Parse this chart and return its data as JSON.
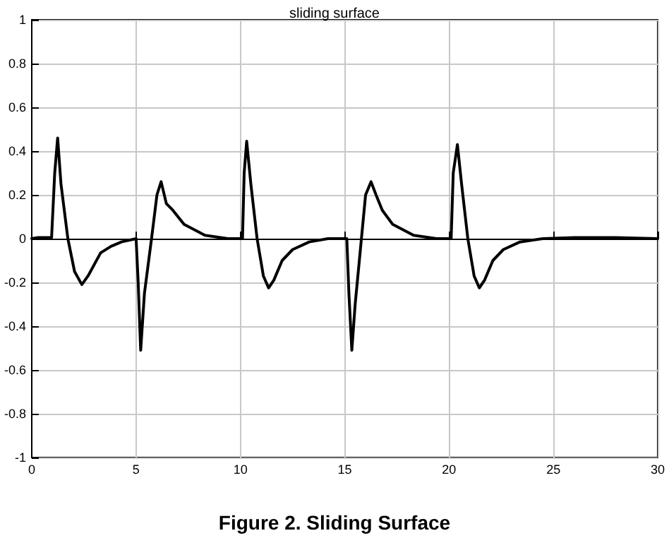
{
  "chart_data": {
    "type": "line",
    "title": "sliding surface",
    "annotations": [
      "Figure 2. Sliding Surface"
    ],
    "x": [
      0,
      0.3,
      0.95,
      1.1,
      1.24,
      1.4,
      1.73,
      2.05,
      2.4,
      2.7,
      3.3,
      3.8,
      4.3,
      5.0,
      5.1,
      5.22,
      5.4,
      5.74,
      6.0,
      6.2,
      6.45,
      6.76,
      7.3,
      8.3,
      9.4,
      10.1,
      10.18,
      10.3,
      10.5,
      10.8,
      11.1,
      11.35,
      11.6,
      12.0,
      12.5,
      13.3,
      14.2,
      15.1,
      15.2,
      15.34,
      15.5,
      15.8,
      16.0,
      16.26,
      16.5,
      16.8,
      17.3,
      18.3,
      19.4,
      20.1,
      20.2,
      20.4,
      20.6,
      20.9,
      21.2,
      21.45,
      21.7,
      22.1,
      22.6,
      23.4,
      24.5,
      26,
      28,
      30
    ],
    "series": [
      {
        "color": "#000000",
        "values": [
          0,
          0.005,
          0.005,
          0.3,
          0.46,
          0.25,
          0,
          -0.15,
          -0.21,
          -0.17,
          -0.065,
          -0.035,
          -0.015,
          0,
          -0.2,
          -0.51,
          -0.25,
          0,
          0.2,
          0.26,
          0.16,
          0.13,
          0.065,
          0.015,
          0,
          0,
          0.3,
          0.445,
          0.25,
          0,
          -0.17,
          -0.225,
          -0.19,
          -0.1,
          -0.05,
          -0.015,
          0,
          0,
          -0.25,
          -0.51,
          -0.3,
          0,
          0.2,
          0.26,
          0.2,
          0.13,
          0.065,
          0.015,
          0,
          0,
          0.3,
          0.43,
          0.25,
          0,
          -0.17,
          -0.225,
          -0.19,
          -0.1,
          -0.05,
          -0.015,
          0,
          0.005,
          0.005,
          0
        ]
      }
    ],
    "xlim": [
      0,
      30
    ],
    "xticks": [
      0,
      5,
      10,
      15,
      20,
      25,
      30
    ],
    "ylim": [
      -1,
      1
    ],
    "yticks": [
      -1,
      -0.8,
      -0.6,
      -0.4,
      -0.2,
      0,
      0.2,
      0.4,
      0.6,
      0.8,
      1
    ],
    "grid": true,
    "marker": "none",
    "line_style": "solid"
  }
}
